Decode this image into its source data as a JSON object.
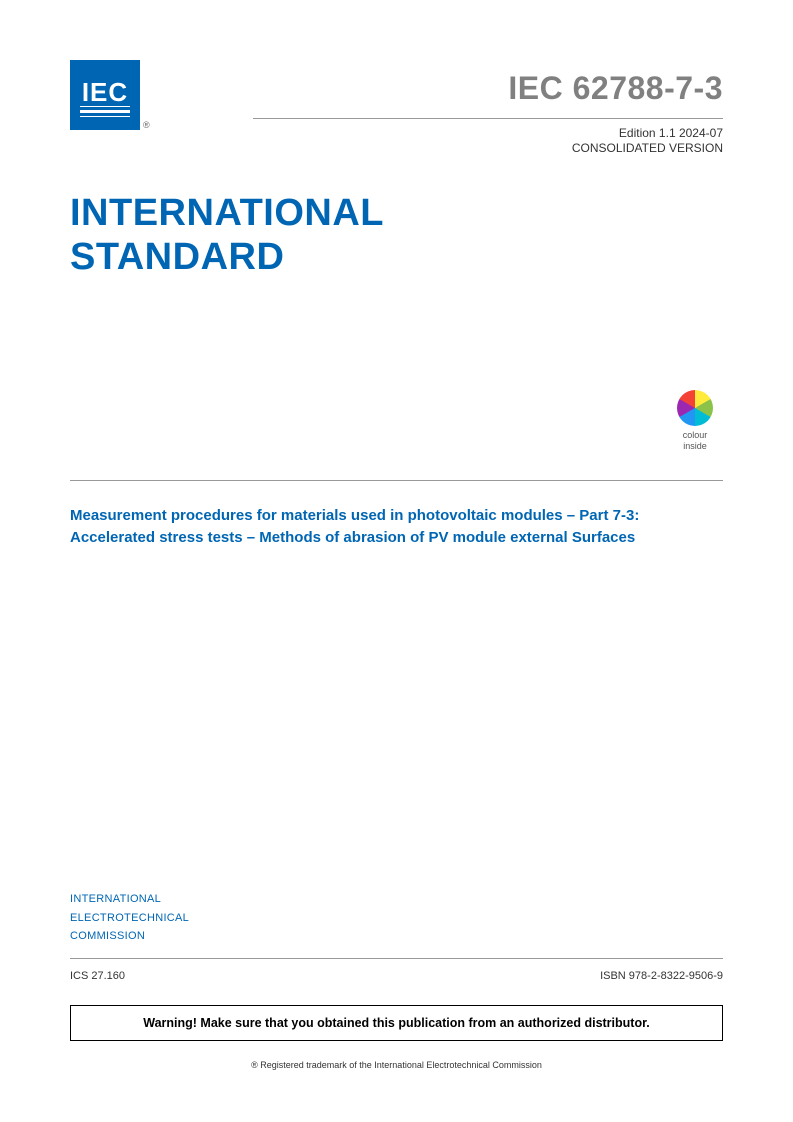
{
  "logo": {
    "text": "IEC",
    "reg_symbol": "®",
    "background_color": "#0066b3",
    "text_color": "#ffffff"
  },
  "header": {
    "standard_code": "IEC 62788-7-3",
    "edition_line": "Edition 1.1    2024-07",
    "consolidated": "CONSOLIDATED VERSION",
    "code_color": "#808080"
  },
  "main_title": {
    "line1": "INTERNATIONAL",
    "line2": "STANDARD",
    "color": "#0066b3",
    "font_size": 38
  },
  "colour_badge": {
    "line1": "colour",
    "line2": "inside",
    "wheel_colors": [
      "#ffeb3b",
      "#8bc34a",
      "#00bcd4",
      "#2196f3",
      "#9c27b0",
      "#f44336"
    ]
  },
  "subtitle": {
    "text": "Measurement procedures for materials used in photovoltaic modules – Part 7-3: Accelerated stress tests – Methods of abrasion of PV module external Surfaces",
    "color": "#0066b3"
  },
  "organization": {
    "line1": "INTERNATIONAL",
    "line2": "ELECTROTECHNICAL",
    "line3": "COMMISSION",
    "color": "#0066b3"
  },
  "footer": {
    "ics": "ICS 27.160",
    "isbn": "ISBN 978-2-8322-9506-9",
    "warning": "Warning! Make sure that you obtained this publication from an authorized distributor.",
    "trademark": "® Registered trademark of the International Electrotechnical Commission"
  },
  "divider_color": "#999999",
  "page_background": "#ffffff"
}
